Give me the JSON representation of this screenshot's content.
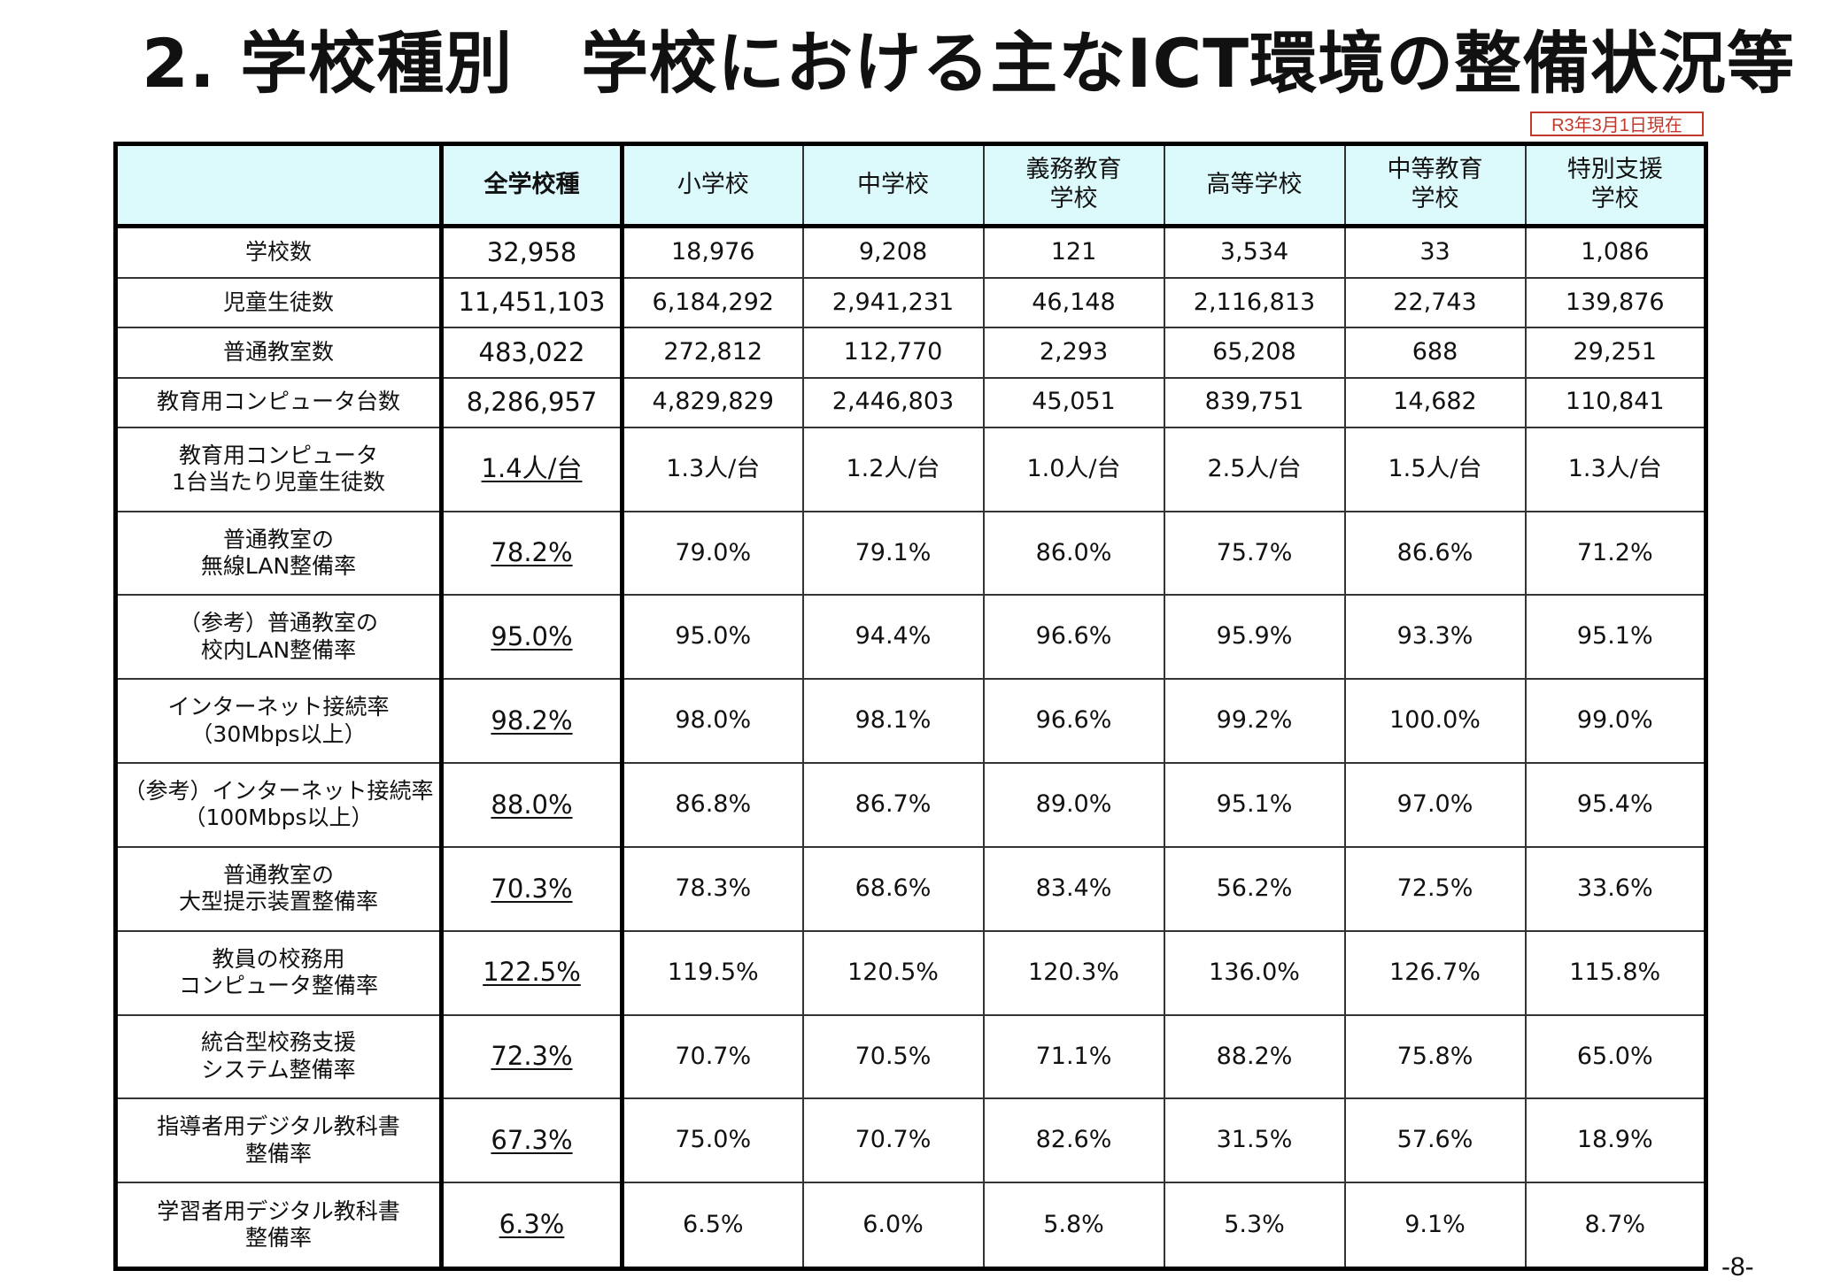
{
  "title": "2. 学校種別　学校における主なICT環境の整備状況等",
  "date_badge": "R3年3月1日現在",
  "page_number": "-8-",
  "table": {
    "columns": [
      "",
      "全学校種",
      "小学校",
      "中学校",
      "義務教育\n学校",
      "高等学校",
      "中等教育\n学校",
      "特別支援\n学校"
    ],
    "rows": [
      {
        "label": "学校数",
        "values": [
          "32,958",
          "18,976",
          "9,208",
          "121",
          "3,534",
          "33",
          "1,086"
        ],
        "underline": false
      },
      {
        "label": "児童生徒数",
        "values": [
          "11,451,103",
          "6,184,292",
          "2,941,231",
          "46,148",
          "2,116,813",
          "22,743",
          "139,876"
        ],
        "underline": false
      },
      {
        "label": "普通教室数",
        "values": [
          "483,022",
          "272,812",
          "112,770",
          "2,293",
          "65,208",
          "688",
          "29,251"
        ],
        "underline": false
      },
      {
        "label": "教育用コンピュータ台数",
        "values": [
          "8,286,957",
          "4,829,829",
          "2,446,803",
          "45,051",
          "839,751",
          "14,682",
          "110,841"
        ],
        "underline": false
      },
      {
        "label": "教育用コンピュータ\n1台当たり児童生徒数",
        "values": [
          "1.4人/台",
          "1.3人/台",
          "1.2人/台",
          "1.0人/台",
          "2.5人/台",
          "1.5人/台",
          "1.3人/台"
        ],
        "underline": true
      },
      {
        "label": "普通教室の\n無線LAN整備率",
        "values": [
          "78.2%",
          "79.0%",
          "79.1%",
          "86.0%",
          "75.7%",
          "86.6%",
          "71.2%"
        ],
        "underline": true
      },
      {
        "label": "（参考）普通教室の\n校内LAN整備率",
        "values": [
          "95.0%",
          "95.0%",
          "94.4%",
          "96.6%",
          "95.9%",
          "93.3%",
          "95.1%"
        ],
        "underline": true
      },
      {
        "label": "インターネット接続率\n（30Mbps以上）",
        "values": [
          "98.2%",
          "98.0%",
          "98.1%",
          "96.6%",
          "99.2%",
          "100.0%",
          "99.0%"
        ],
        "underline": true
      },
      {
        "label": "（参考）インターネット接続率\n（100Mbps以上）",
        "values": [
          "88.0%",
          "86.8%",
          "86.7%",
          "89.0%",
          "95.1%",
          "97.0%",
          "95.4%"
        ],
        "underline": true
      },
      {
        "label": "普通教室の\n大型提示装置整備率",
        "values": [
          "70.3%",
          "78.3%",
          "68.6%",
          "83.4%",
          "56.2%",
          "72.5%",
          "33.6%"
        ],
        "underline": true
      },
      {
        "label": "教員の校務用\nコンピュータ整備率",
        "values": [
          "122.5%",
          "119.5%",
          "120.5%",
          "120.3%",
          "136.0%",
          "126.7%",
          "115.8%"
        ],
        "underline": true
      },
      {
        "label": "統合型校務支援\nシステム整備率",
        "values": [
          "72.3%",
          "70.7%",
          "70.5%",
          "71.1%",
          "88.2%",
          "75.8%",
          "65.0%"
        ],
        "underline": true
      },
      {
        "label": "指導者用デジタル教科書\n整備率",
        "values": [
          "67.3%",
          "75.0%",
          "70.7%",
          "82.6%",
          "31.5%",
          "57.6%",
          "18.9%"
        ],
        "underline": true
      },
      {
        "label": "学習者用デジタル教科書\n整備率",
        "values": [
          "6.3%",
          "6.5%",
          "6.0%",
          "5.8%",
          "5.3%",
          "9.1%",
          "8.7%"
        ],
        "underline": true
      }
    ]
  }
}
